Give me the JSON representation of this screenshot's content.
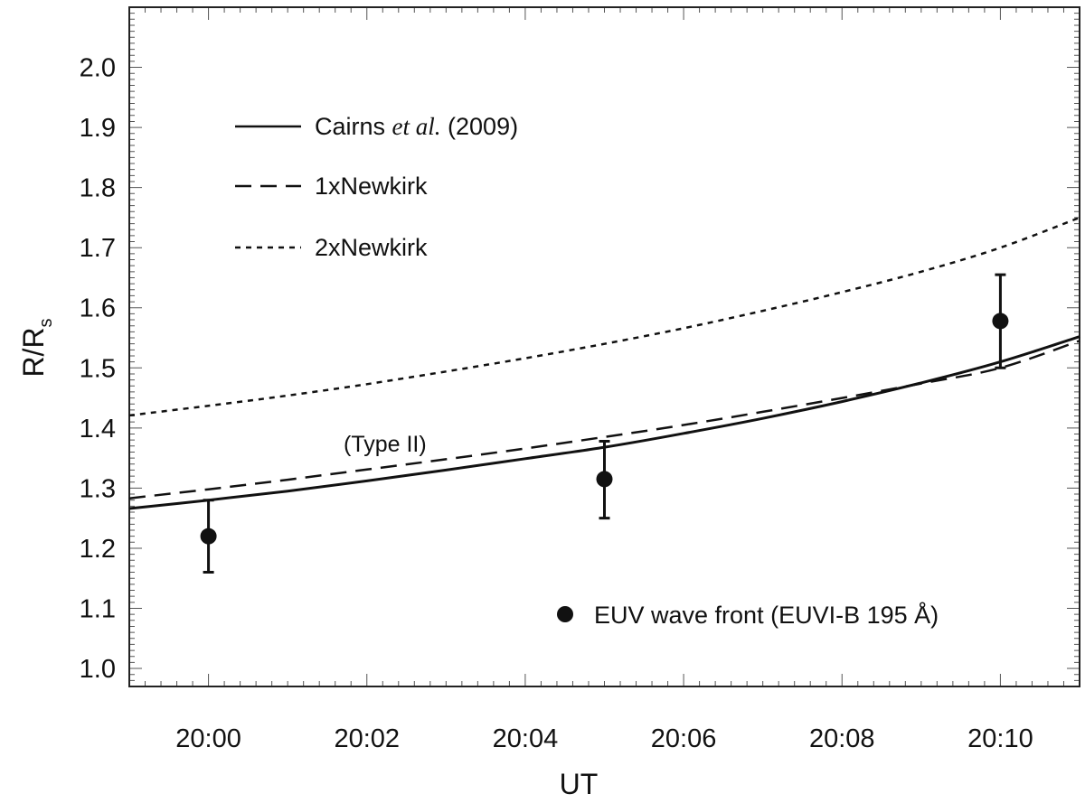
{
  "chart_data": {
    "type": "line",
    "title": "",
    "xlabel": "UT",
    "ylabel_main": "R/R",
    "ylabel_sub": "s",
    "xlim": [
      "19:59",
      "20:11"
    ],
    "ylim": [
      0.97,
      2.1
    ],
    "x_ticks": [
      "20:00",
      "20:02",
      "20:04",
      "20:06",
      "20:08",
      "20:10"
    ],
    "y_ticks": [
      "1.0",
      "1.1",
      "1.2",
      "1.3",
      "1.4",
      "1.5",
      "1.6",
      "1.7",
      "1.8",
      "1.9",
      "2.0"
    ],
    "x_common": [
      "19:59",
      "20:00",
      "20:01",
      "20:02",
      "20:03",
      "20:04",
      "20:05",
      "20:06",
      "20:07",
      "20:08",
      "20:09",
      "20:10",
      "20:11"
    ],
    "series": [
      {
        "name_parts": [
          "Cairns ",
          "et al.",
          " (2009)"
        ],
        "style": "solid",
        "values": [
          1.266,
          1.28,
          1.295,
          1.312,
          1.33,
          1.349,
          1.368,
          1.391,
          1.416,
          1.444,
          1.475,
          1.51,
          1.552
        ]
      },
      {
        "name": "1xNewkirk",
        "style": "dashed",
        "values": [
          1.283,
          1.298,
          1.314,
          1.331,
          1.348,
          1.366,
          1.385,
          1.405,
          1.427,
          1.45,
          1.474,
          1.5,
          1.545
        ]
      },
      {
        "name": "2xNewkirk",
        "style": "dotted",
        "values": [
          1.421,
          1.437,
          1.454,
          1.473,
          1.494,
          1.516,
          1.54,
          1.566,
          1.595,
          1.626,
          1.66,
          1.7,
          1.75
        ]
      }
    ],
    "points": {
      "name": "EUV wave front (EUVI-B 195 Å)",
      "x": [
        "20:00",
        "20:05",
        "20:10"
      ],
      "y": [
        1.22,
        1.315,
        1.578
      ],
      "err_low": [
        1.16,
        1.25,
        1.5
      ],
      "err_high": [
        1.28,
        1.378,
        1.655
      ]
    },
    "annotation": "(Type II)",
    "grid": false,
    "legend_location": "upper-left"
  }
}
